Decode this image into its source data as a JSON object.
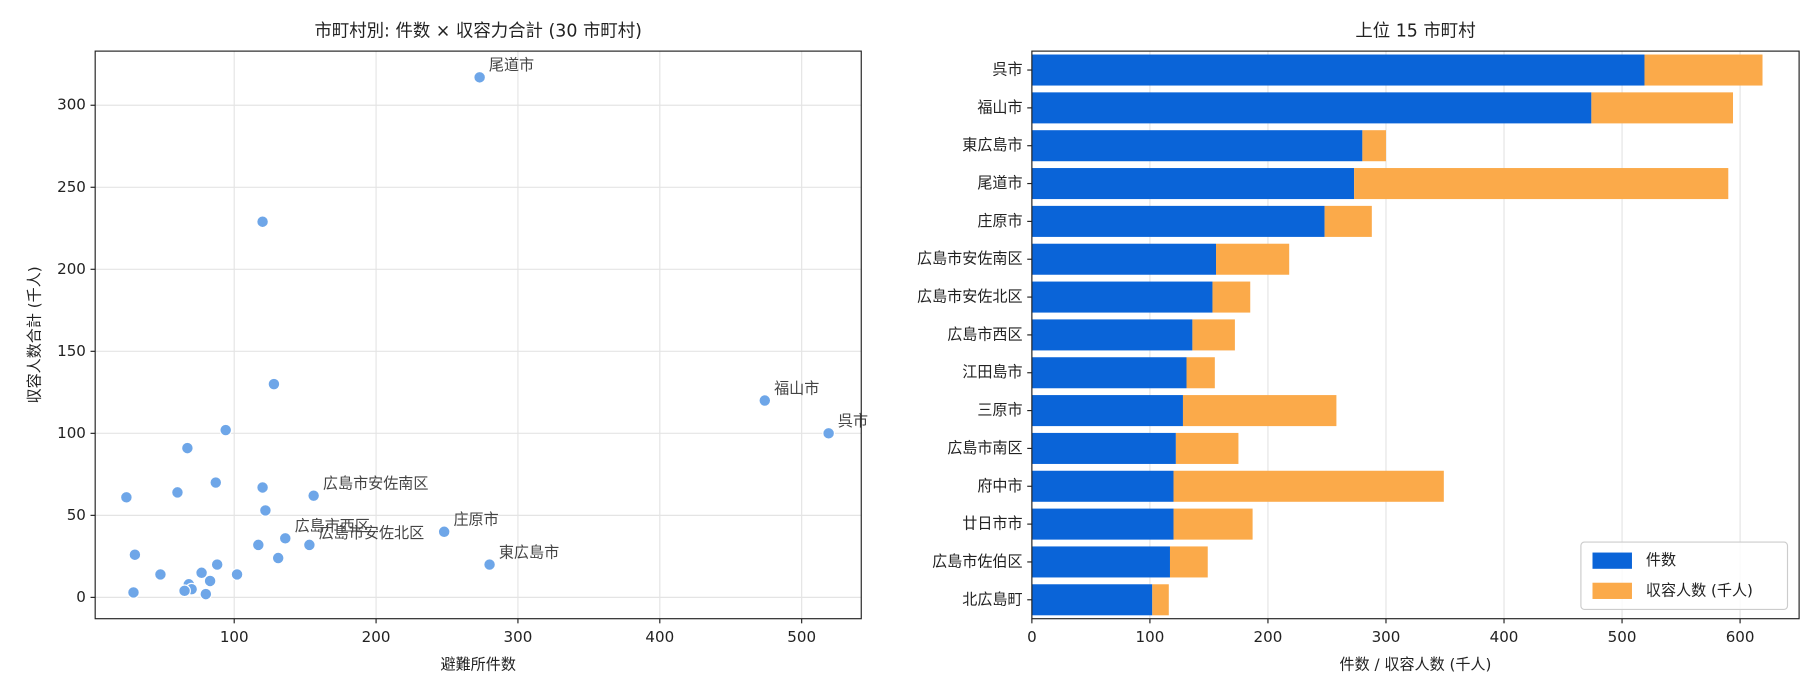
{
  "chart_data": [
    {
      "type": "scatter",
      "title": "市町村別: 件数 × 収容力合計 (30 市町村)",
      "x_label": "避難所件数",
      "y_label": "収容人数合計 (千人)",
      "color": "#6ea6e8",
      "grid": true,
      "xlim": [
        2,
        542
      ],
      "ylim": [
        -13,
        333
      ],
      "xticks": [
        100,
        200,
        300,
        400,
        500
      ],
      "yticks": [
        0,
        50,
        100,
        150,
        200,
        250,
        300
      ],
      "x": [
        273,
        474,
        519,
        280,
        248,
        156,
        136,
        153,
        120,
        128,
        94,
        67,
        120,
        87,
        60,
        24,
        122,
        117,
        131,
        30,
        88,
        48,
        77,
        102,
        83,
        68,
        70,
        65,
        80,
        29
      ],
      "y": [
        317,
        120,
        100,
        20,
        40,
        62,
        36,
        32,
        229,
        130,
        102,
        91,
        67,
        70,
        64,
        61,
        53,
        32,
        24,
        26,
        20,
        14,
        15,
        14,
        10,
        8,
        5,
        4,
        2,
        3
      ],
      "labels": [
        "尾道市",
        "福山市",
        "呉市",
        "東広島市",
        "庄原市",
        "広島市安佐南区",
        "広島市西区",
        "広島市安佐北区",
        null,
        null,
        null,
        null,
        null,
        null,
        null,
        null,
        null,
        null,
        null,
        null,
        null,
        null,
        null,
        null,
        null,
        null,
        null,
        null,
        null,
        null
      ]
    },
    {
      "type": "barh",
      "title": "上位 15 市町村",
      "x_label": "件数 / 収容人数 (千人)",
      "stacked": true,
      "grid": true,
      "legend": "lower right",
      "xlim": [
        0,
        650
      ],
      "xticks": [
        0,
        100,
        200,
        300,
        400,
        500,
        600
      ],
      "categories": [
        "呉市",
        "福山市",
        "東広島市",
        "尾道市",
        "庄原市",
        "広島市安佐南区",
        "広島市安佐北区",
        "広島市西区",
        "江田島市",
        "三原市",
        "広島市南区",
        "府中市",
        "廿日市市",
        "広島市佐伯区",
        "北広島町"
      ],
      "series": [
        {
          "name": "件数",
          "color": "#0a64d8",
          "values": [
            519,
            474,
            280,
            273,
            248,
            156,
            153,
            136,
            131,
            128,
            122,
            120,
            120,
            117,
            102
          ]
        },
        {
          "name": "収容人数 (千人)",
          "color": "#fbaa4a",
          "values": [
            100,
            120,
            20,
            317,
            40,
            62,
            32,
            36,
            24,
            130,
            53,
            229,
            67,
            32,
            14
          ]
        }
      ]
    }
  ]
}
